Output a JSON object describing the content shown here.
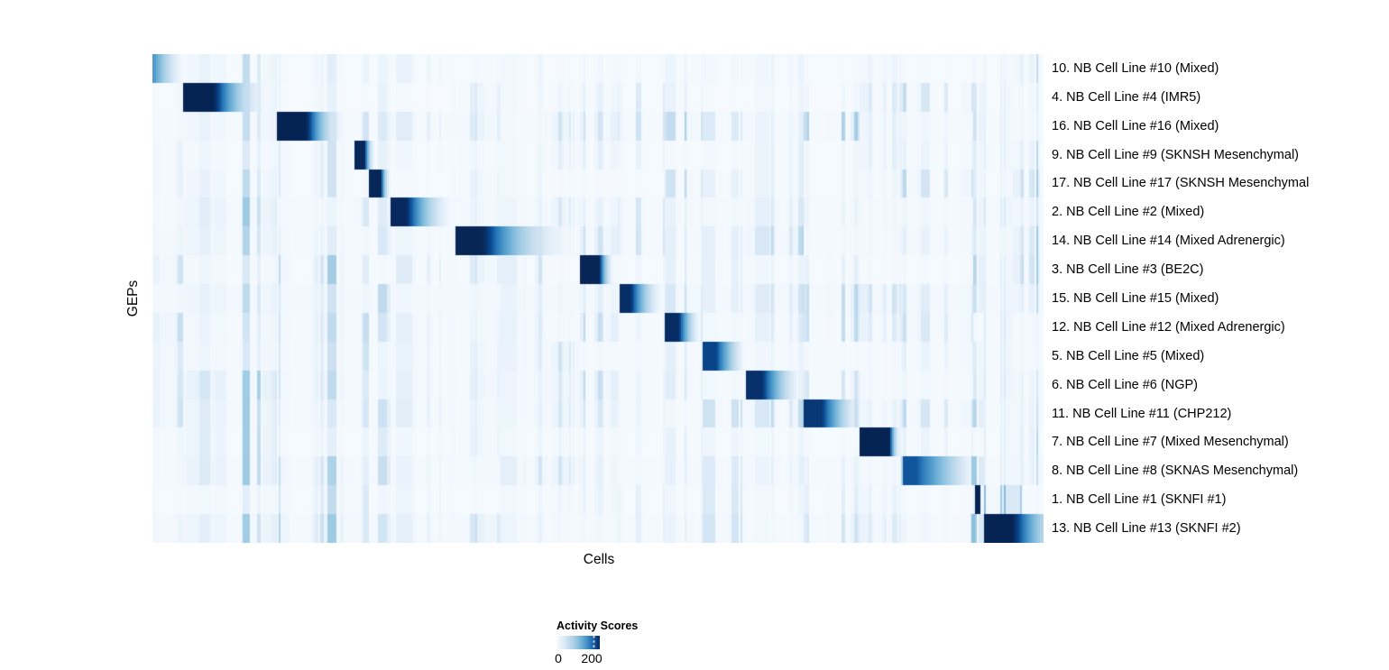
{
  "chart_data": {
    "type": "heatmap",
    "title": "",
    "xlabel": "Cells",
    "ylabel": "GEPs",
    "legend": {
      "title": "Activity Scores",
      "min_label": "0",
      "max_label": "200",
      "min_value": 0,
      "max_value": 200
    },
    "colormap": "Blues (white to dark navy)",
    "value_color_stops": [
      [
        0,
        [
          247,
          251,
          255
        ]
      ],
      [
        30,
        [
          226,
          238,
          249
        ]
      ],
      [
        60,
        [
          203,
          224,
          241
        ]
      ],
      [
        95,
        [
          166,
          206,
          229
        ]
      ],
      [
        130,
        [
          115,
          179,
          216
        ]
      ],
      [
        160,
        [
          70,
          148,
          199
        ]
      ],
      [
        185,
        [
          36,
          114,
          181
        ]
      ],
      [
        205,
        [
          11,
          77,
          148
        ]
      ],
      [
        228,
        [
          8,
          48,
          107
        ]
      ],
      [
        255,
        [
          6,
          33,
          77
        ]
      ]
    ],
    "rows": [
      {
        "label": "10. NB Cell Line #10 (Mixed)",
        "block": {
          "start": 0.0,
          "solid_end": 0.002,
          "fade_end": 0.037,
          "peak": 155,
          "decay": 1.3
        }
      },
      {
        "label": "4. NB Cell Line #4 (IMR5)",
        "block": {
          "start": 0.0344,
          "solid_end": 0.0678,
          "fade_end": 0.1346,
          "peak": 250,
          "decay": 1.7
        }
      },
      {
        "label": "16. NB Cell Line #16 (Mixed)",
        "block": {
          "start": 0.1397,
          "solid_end": 0.1721,
          "fade_end": 0.2196,
          "peak": 250,
          "decay": 1.7
        }
      },
      {
        "label": "9. NB Cell Line #9 (SKNSH Mesenchymal)",
        "block": {
          "start": 0.2267,
          "solid_end": 0.2379,
          "fade_end": 0.252,
          "peak": 245,
          "decay": 2.0
        }
      },
      {
        "label": "17. NB Cell Line #17 (SKNSH Mesenchymal",
        "block": {
          "start": 0.2429,
          "solid_end": 0.2561,
          "fade_end": 0.2692,
          "peak": 245,
          "decay": 2.0
        }
      },
      {
        "label": "2. NB Cell Line #2 (Mixed)",
        "block": {
          "start": 0.2672,
          "solid_end": 0.2844,
          "fade_end": 0.3411,
          "peak": 240,
          "decay": 1.6
        }
      },
      {
        "label": "14. NB Cell Line #14 (Mixed Adrenergic)",
        "block": {
          "start": 0.3391,
          "solid_end": 0.3694,
          "fade_end": 0.4828,
          "peak": 248,
          "decay": 1.9
        }
      },
      {
        "label": "3. NB Cell Line #3 (BE2C)",
        "block": {
          "start": 0.4798,
          "solid_end": 0.501,
          "fade_end": 0.5202,
          "peak": 248,
          "decay": 1.8
        }
      },
      {
        "label": "15. NB Cell Line #15 (Mixed)",
        "block": {
          "start": 0.5233,
          "solid_end": 0.5364,
          "fade_end": 0.5759,
          "peak": 232,
          "decay": 1.6
        }
      },
      {
        "label": "12. NB Cell Line #12 (Mixed Adrenergic)",
        "block": {
          "start": 0.5749,
          "solid_end": 0.5901,
          "fade_end": 0.6174,
          "peak": 235,
          "decay": 1.5
        }
      },
      {
        "label": "5. NB Cell Line #5 (Mixed)",
        "block": {
          "start": 0.6184,
          "solid_end": 0.6326,
          "fade_end": 0.665,
          "peak": 212,
          "decay": 1.1
        }
      },
      {
        "label": "6. NB Cell Line #6 (NGP)",
        "block": {
          "start": 0.667,
          "solid_end": 0.6842,
          "fade_end": 0.7308,
          "peak": 228,
          "decay": 1.4
        }
      },
      {
        "label": "11. NB Cell Line #11 (CHP212)",
        "block": {
          "start": 0.7298,
          "solid_end": 0.751,
          "fade_end": 0.7945,
          "peak": 222,
          "decay": 1.2
        }
      },
      {
        "label": "7. NB Cell Line #7 (Mixed Mesenchymal)",
        "block": {
          "start": 0.7945,
          "solid_end": 0.8269,
          "fade_end": 0.8421,
          "peak": 250,
          "decay": 2.0
        }
      },
      {
        "label": "8. NB Cell Line #8 (SKNAS Mesenchymal)",
        "block": {
          "start": 0.8411,
          "solid_end": 0.8573,
          "fade_end": 0.9211,
          "peak": 200,
          "decay": 0.9
        }
      },
      {
        "label": "1. NB Cell Line #1 (SKNFI #1)",
        "block": {
          "start": 0.9221,
          "solid_end": 0.9281,
          "fade_end": 0.9312,
          "peak": 252,
          "decay": 2.5
        },
        "stripe_patch": {
          "from": 0.934,
          "to": 0.975,
          "gain": 4.0,
          "cap": 145
        }
      },
      {
        "label": "13. NB Cell Line #13 (SKNFI #2)",
        "block": {
          "start": 0.9342,
          "solid_end": 0.9646,
          "fade_end": 1.03,
          "peak": 250,
          "decay": 1.5
        },
        "stripe_patch": {
          "from": 0.916,
          "to": 0.9335,
          "gain": 3.2,
          "cap": 120
        }
      }
    ],
    "texture": {
      "seed": 11,
      "segment_bounds": [
        0,
        0.034,
        0.14,
        0.227,
        0.243,
        0.267,
        0.339,
        0.39,
        0.44,
        0.48,
        0.523,
        0.575,
        0.618,
        0.667,
        0.73,
        0.794,
        0.841,
        0.922,
        0.934,
        0.965,
        1
      ],
      "row_strength": [
        0.5,
        0.8,
        1.6,
        0.9,
        0.9,
        1.3,
        1.0,
        1.0,
        1.7,
        1.2,
        1.0,
        1.2,
        1.4,
        0.9,
        1.5,
        0.7,
        1.2
      ],
      "row_base": [
        3,
        2,
        4,
        3,
        3,
        5,
        5,
        3,
        6,
        4,
        4,
        4,
        4,
        3,
        5,
        3,
        5
      ],
      "noise_cap": 95
    }
  }
}
